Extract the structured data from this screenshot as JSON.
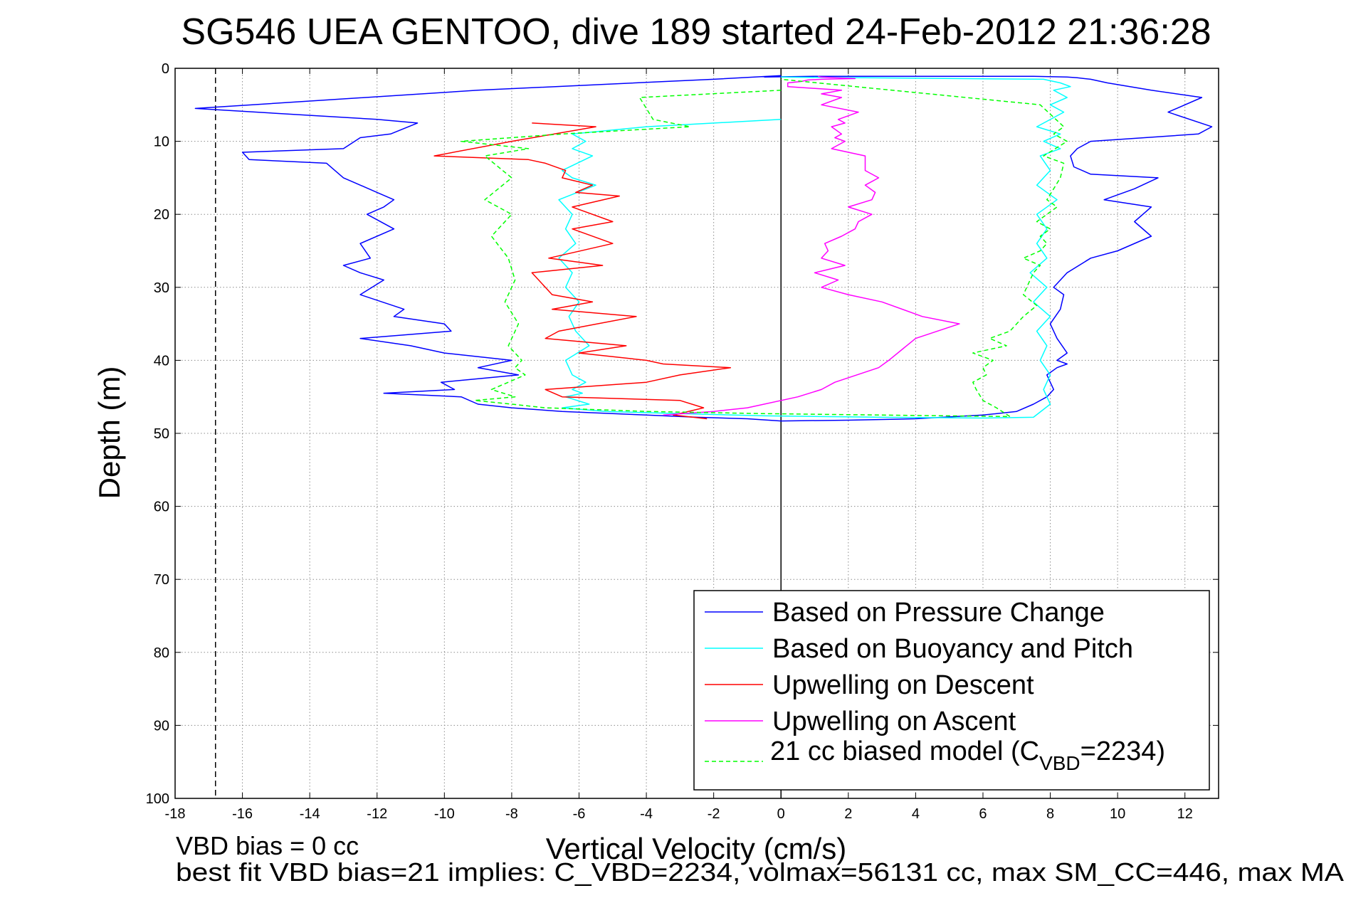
{
  "chart_data": {
    "type": "line",
    "title": "SG546 UEA GENTOO, dive 189 started 24-Feb-2012 21:36:28",
    "xlabel": "Vertical Velocity (cm/s)",
    "ylabel": "Depth (m)",
    "xlim": [
      -18,
      13
    ],
    "ylim": [
      0,
      100
    ],
    "y_reversed": true,
    "grid": true,
    "legend_position": "bottom-right",
    "x_ticks": [
      -18,
      -16,
      -14,
      -12,
      -10,
      -8,
      -6,
      -4,
      -2,
      0,
      2,
      4,
      6,
      8,
      10,
      12
    ],
    "x_tick_labels": [
      "-18",
      "-16",
      "-14",
      "-12",
      "-10",
      "-8",
      "-6",
      "-4",
      "-2",
      "0",
      "2",
      "4",
      "6",
      "8",
      "10",
      "12"
    ],
    "y_ticks": [
      0,
      10,
      20,
      30,
      40,
      50,
      60,
      70,
      80,
      90,
      100
    ],
    "y_tick_labels": [
      "0",
      "10",
      "20",
      "30",
      "40",
      "50",
      "60",
      "70",
      "80",
      "90",
      "100"
    ],
    "reference_lines": [
      {
        "orientation": "vertical",
        "x": 0,
        "style": "solid",
        "color": "#000000"
      },
      {
        "orientation": "vertical",
        "x": -16.8,
        "style": "dashed",
        "color": "#000000"
      }
    ],
    "series": [
      {
        "name": "Based on Pressure Change",
        "color": "#0000ff",
        "style": "solid",
        "x": [
          0,
          -2,
          -9,
          -17.4,
          -12,
          -10.8,
          -11.6,
          -12.5,
          -13,
          -16,
          -15.8,
          -13.5,
          -13,
          -12,
          -11.5,
          -11.8,
          -12.3,
          -11.5,
          -12.5,
          -12.2,
          -13,
          -12.5,
          -11.8,
          -12.5,
          -11.2,
          -11.5,
          -10,
          -9.8,
          -12.5,
          -11,
          -10,
          -8,
          -9,
          -7.8,
          -10.1,
          -9.7,
          -11.8,
          -9.5,
          -9,
          -8,
          -6.5,
          -4,
          -2.5,
          -1,
          0,
          2,
          4,
          6,
          7,
          7.5,
          7.9,
          8.1,
          8,
          7.9,
          8.2,
          8.5,
          8.2,
          8.5,
          8.2,
          8,
          8.3,
          8.4,
          8.1,
          8.5,
          9.2,
          10,
          11,
          10.5,
          11,
          9.6,
          10.5,
          11.2,
          9.2,
          8.7,
          8.6,
          8.8,
          9.2,
          10.8,
          12.4,
          12.8,
          11.5,
          12.5,
          11,
          9.7,
          9.2,
          8.8,
          8.5,
          7.5,
          4,
          1,
          -0.5
        ],
        "y": [
          1,
          1.5,
          3,
          5.5,
          7,
          7.5,
          9,
          9.5,
          11,
          11.5,
          12.5,
          13,
          15,
          17,
          18,
          19,
          20,
          22,
          24,
          26,
          27,
          28,
          29,
          31,
          33,
          34,
          35,
          36,
          37,
          38,
          39,
          40,
          41,
          42,
          43,
          44,
          44.5,
          45,
          46,
          46.5,
          47,
          47.5,
          47.8,
          48,
          48.3,
          48.2,
          48,
          47.5,
          47,
          46,
          45,
          44,
          43,
          42,
          41,
          40.5,
          40,
          39,
          37,
          35,
          33,
          31,
          30,
          28,
          26,
          25,
          23,
          21,
          19,
          18,
          16.5,
          15,
          14.5,
          13.5,
          12,
          11,
          10,
          9.5,
          9,
          8,
          6,
          4,
          3,
          2,
          1.5,
          1.3,
          1.2,
          1.1,
          1.1,
          1.1,
          1.2
        ]
      },
      {
        "name": "Based on Buoyancy and Pitch",
        "color": "#00ffff",
        "style": "solid",
        "x": [
          0,
          -4,
          -6.2,
          -5.8,
          -6.2,
          -5.6,
          -6.5,
          -6.2,
          -5.5,
          -6.6,
          -6.2,
          -6.4,
          -6.1,
          -6.6,
          -6.2,
          -6.4,
          -6,
          -6.3,
          -6.1,
          -5.7,
          -6.4,
          -6.2,
          -5.8,
          -6.2,
          -5.9,
          -6.4,
          -5.7,
          -6.5,
          -5.2,
          -3,
          -0.5,
          3,
          6,
          7.5,
          8,
          7.8,
          8,
          7.7,
          7.9,
          7.6,
          8,
          7.5,
          7.9,
          7.4,
          7.9,
          7.6,
          7.9,
          7.6,
          8.2,
          7.6,
          8,
          7.7,
          8.3,
          7.8,
          8.3,
          7.6,
          8.4,
          8,
          8.5,
          8.1,
          8.6,
          8.3,
          7.8,
          0
        ],
        "y": [
          7,
          8,
          9,
          10,
          11,
          12,
          14,
          15,
          16,
          18,
          20,
          22,
          24,
          26,
          28,
          30,
          32,
          34,
          36,
          38,
          40,
          42,
          43,
          44,
          44.5,
          45,
          46,
          46.5,
          47,
          47.3,
          47.6,
          47.8,
          47.9,
          47.8,
          46,
          44,
          42,
          40,
          38,
          36,
          34,
          32,
          30,
          28,
          26,
          24,
          22,
          20,
          18,
          16,
          14,
          12,
          11,
          10,
          9,
          8,
          6,
          5,
          4,
          3,
          2.5,
          2,
          1.5,
          1.2
        ]
      },
      {
        "name": "Upwelling on Descent",
        "color": "#ff0000",
        "style": "solid",
        "x": [
          -7.4,
          -5.5,
          -8,
          -10.3,
          -7.5,
          -7,
          -6.4,
          -6.5,
          -5.6,
          -6.1,
          -4.8,
          -6.2,
          -5,
          -6.2,
          -5,
          -6.9,
          -5.3,
          -7.4,
          -6.8,
          -5.6,
          -6.8,
          -4.3,
          -6.6,
          -7,
          -4.6,
          -6,
          -4,
          -3.5,
          -1.5,
          -3,
          -4,
          -7,
          -6.5,
          -3,
          -2.3,
          -3.2,
          -2.2
        ],
        "y": [
          7.5,
          8,
          10,
          12,
          12.5,
          13,
          14,
          15,
          16,
          17,
          17.5,
          19,
          21,
          22,
          24,
          26,
          27,
          28,
          31,
          32,
          33,
          34,
          36,
          37,
          38,
          39,
          40,
          40.5,
          41,
          42,
          43,
          44,
          45,
          45.5,
          46.5,
          47.5,
          48
        ]
      },
      {
        "name": "Upwelling on Ascent",
        "color": "#ff00ff",
        "style": "solid",
        "x": [
          -3.5,
          -2,
          -1,
          0.5,
          1.2,
          1.6,
          2.9,
          3.2,
          4,
          5.3,
          4.2,
          3,
          2,
          1.2,
          1.7,
          1,
          1.9,
          1.2,
          1.4,
          1.3,
          1.8,
          2.2,
          2.3,
          2.7,
          2,
          2.7,
          2.8,
          2.5,
          2.9,
          2.5,
          2.5,
          2.5,
          1.5,
          1.9,
          1.6,
          1.8,
          1.5,
          1.9,
          1.7,
          2.3,
          1.2,
          1.8,
          1.2,
          1.8,
          0.2,
          0.2,
          0.6,
          0.8,
          1.2,
          2.2,
          1.6,
          1.2,
          1.1
        ],
        "y": [
          47.5,
          47,
          46.5,
          45,
          44,
          43,
          41,
          40,
          37,
          35,
          34,
          32,
          31,
          30,
          29,
          28,
          27,
          26,
          25,
          24,
          23,
          22,
          21,
          20,
          19,
          18,
          17,
          16,
          15,
          14,
          13,
          12,
          11,
          10,
          9.5,
          9,
          8,
          7.5,
          7,
          6,
          5,
          4,
          3.5,
          3,
          2.5,
          2,
          1.8,
          1.6,
          1.5,
          1.4,
          1.3,
          1.2,
          1.1
        ]
      },
      {
        "name": "21 cc biased model (C_VBD=2234)",
        "color": "#00ff00",
        "style": "dashed",
        "x": [
          0,
          -4.2,
          -3.8,
          -2.7,
          -6.5,
          -9.5,
          -7.5,
          -8.8,
          -8,
          -8.8,
          -8,
          -8.6,
          -8.1,
          -7.9,
          -8.2,
          -7.8,
          -8.1,
          -7.7,
          -7.9,
          -7.6,
          -8.6,
          -7.9,
          -9.1,
          -8,
          -7,
          -4,
          -0.5,
          3,
          6.8,
          6.4,
          6,
          5.8,
          5.7,
          6.1,
          6,
          6.3,
          5.7,
          6.7,
          6.2,
          6.8,
          7,
          7.2,
          7.6,
          7.2,
          7.4,
          7.5,
          7.7,
          7.2,
          7.7,
          7.9,
          7.7,
          8,
          7.6,
          8.2,
          7.9,
          8.1,
          8.3,
          8.4,
          7.8,
          8.5,
          8.1,
          8.4,
          7.7,
          0
        ],
        "y": [
          3,
          4,
          7,
          8,
          9,
          10,
          11,
          12,
          15,
          18,
          20,
          23,
          26,
          29,
          32,
          35,
          38,
          40,
          41,
          42,
          44,
          45,
          45.5,
          46,
          46.5,
          47,
          47.3,
          47.5,
          47.7,
          46.5,
          45.5,
          44,
          43,
          42,
          41,
          40,
          39,
          38,
          37,
          36,
          35,
          34,
          32.5,
          31,
          29,
          28,
          27,
          26,
          25,
          24,
          23,
          22,
          21,
          19,
          18,
          16.5,
          15,
          13,
          12,
          10,
          9,
          8,
          5,
          1.5
        ]
      }
    ],
    "legend": {
      "entries": [
        {
          "label": "Based on Pressure Change"
        },
        {
          "label": "Based on Buoyancy and Pitch"
        },
        {
          "label": "Upwelling on Descent"
        },
        {
          "label": "Upwelling on Ascent"
        },
        {
          "label_main": "21 cc biased model (C",
          "label_sub": "VBD",
          "label_tail": "=2234)"
        }
      ]
    },
    "annotations": {
      "vbd_bias": "VBD bias = 0 cc",
      "best_fit": "best fit VBD bias=21 implies: C_VBD=2234, volmax=56131 cc, max SM_CC=446, max MA"
    }
  }
}
